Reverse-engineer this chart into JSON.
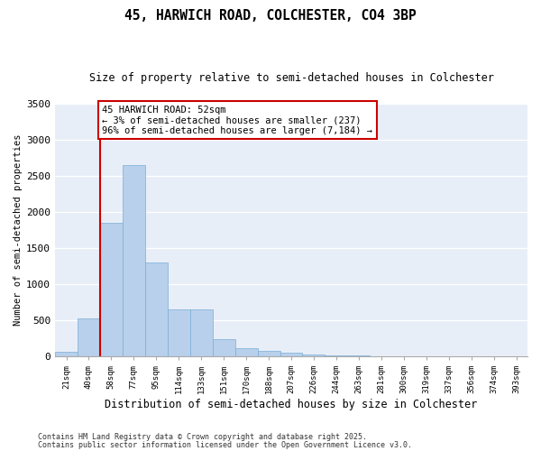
{
  "title": "45, HARWICH ROAD, COLCHESTER, CO4 3BP",
  "subtitle": "Size of property relative to semi-detached houses in Colchester",
  "xlabel": "Distribution of semi-detached houses by size in Colchester",
  "ylabel": "Number of semi-detached properties",
  "categories": [
    "21sqm",
    "40sqm",
    "58sqm",
    "77sqm",
    "95sqm",
    "114sqm",
    "133sqm",
    "151sqm",
    "170sqm",
    "188sqm",
    "207sqm",
    "226sqm",
    "244sqm",
    "263sqm",
    "281sqm",
    "300sqm",
    "319sqm",
    "337sqm",
    "356sqm",
    "374sqm",
    "393sqm"
  ],
  "values": [
    70,
    530,
    1850,
    2650,
    1300,
    650,
    650,
    240,
    110,
    80,
    55,
    30,
    20,
    10,
    5,
    3,
    2,
    1,
    0,
    0,
    0
  ],
  "bar_color": "#b8d0eb",
  "bar_edge_color": "#7aaed6",
  "bar_linewidth": 0.5,
  "vline_color": "#cc0000",
  "annotation_title": "45 HARWICH ROAD: 52sqm",
  "annotation_line1": "← 3% of semi-detached houses are smaller (237)",
  "annotation_line2": "96% of semi-detached houses are larger (7,184) →",
  "annotation_box_color": "#ffffff",
  "annotation_box_edge": "#cc0000",
  "ylim": [
    0,
    3500
  ],
  "yticks": [
    0,
    500,
    1000,
    1500,
    2000,
    2500,
    3000,
    3500
  ],
  "bg_color": "#e8eef8",
  "footer1": "Contains HM Land Registry data © Crown copyright and database right 2025.",
  "footer2": "Contains public sector information licensed under the Open Government Licence v3.0."
}
